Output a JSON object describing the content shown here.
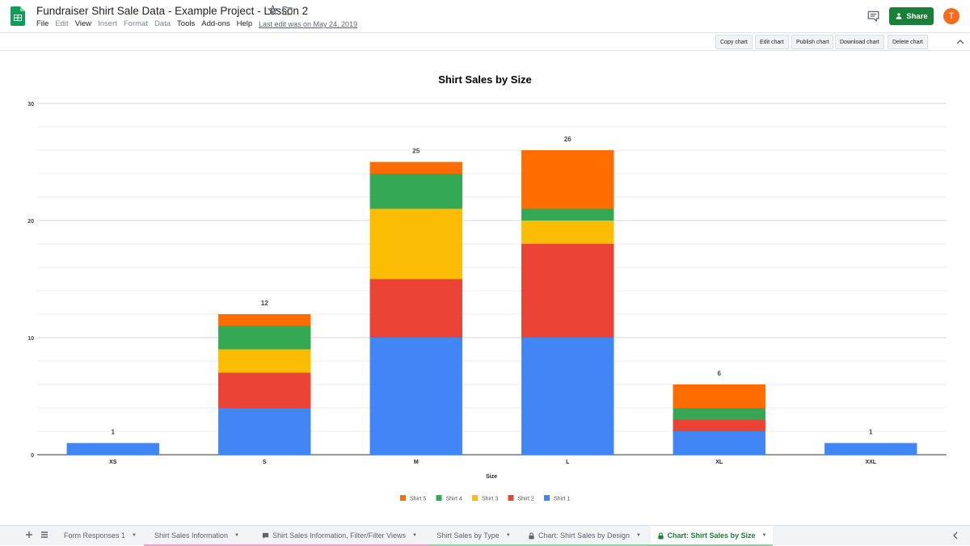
{
  "header": {
    "title": "Fundraiser Shirt Sale Data - Example Project - Lesson 2",
    "menu": [
      {
        "label": "File",
        "enabled": true
      },
      {
        "label": "Edit",
        "enabled": false
      },
      {
        "label": "View",
        "enabled": true
      },
      {
        "label": "Insert",
        "enabled": false
      },
      {
        "label": "Format",
        "enabled": false
      },
      {
        "label": "Data",
        "enabled": false
      },
      {
        "label": "Tools",
        "enabled": true
      },
      {
        "label": "Add-ons",
        "enabled": true
      },
      {
        "label": "Help",
        "enabled": true
      }
    ],
    "last_edit": "Last edit was on May 24, 2019",
    "share_label": "Share",
    "avatar_letter": "T",
    "icons": [
      "sheets-logo-icon",
      "star-icon",
      "move-to-folder-icon",
      "comment-icon",
      "collapse-icon"
    ]
  },
  "toolbar": {
    "buttons": [
      "Copy chart",
      "Edit chart",
      "Publish chart",
      "Download chart",
      "Delete chart"
    ]
  },
  "chart_data": {
    "type": "bar",
    "stacked": true,
    "title": "Shirt Sales by Size",
    "xlabel": "Size",
    "ylabel": "",
    "categories": [
      "XS",
      "S",
      "M",
      "L",
      "XL",
      "XXL"
    ],
    "ylim": [
      0,
      30
    ],
    "yticks": [
      "0",
      "10",
      "20",
      "30"
    ],
    "grid": true,
    "legend_position": "bottom",
    "series": [
      {
        "name": "Shirt 1",
        "color": "#4285f4",
        "values": [
          1,
          4,
          10,
          10,
          2,
          1
        ]
      },
      {
        "name": "Shirt 2",
        "color": "#ea4335",
        "values": [
          0,
          3,
          5,
          8,
          1,
          0
        ]
      },
      {
        "name": "Shirt 3",
        "color": "#fbbc04",
        "values": [
          0,
          2,
          6,
          2,
          0,
          0
        ]
      },
      {
        "name": "Shirt 4",
        "color": "#34a853",
        "values": [
          0,
          2,
          3,
          1,
          1,
          0
        ]
      },
      {
        "name": "Shirt 5",
        "color": "#ff6d01",
        "values": [
          0,
          1,
          1,
          5,
          2,
          0
        ]
      }
    ],
    "totals": [
      "1",
      "12",
      "25",
      "26",
      "6",
      "1"
    ]
  },
  "tabs": [
    {
      "label": "Form Responses 1",
      "icon": "",
      "color": "",
      "active": false
    },
    {
      "label": "Shirt Sales Information",
      "icon": "",
      "color": "#e6a0c4",
      "active": false
    },
    {
      "label": "Shirt Sales Information, Filter/Filter Views",
      "icon": "comment-tab-icon",
      "color": "#e6a0c4",
      "active": false
    },
    {
      "label": "Shirt Sales by Type",
      "icon": "",
      "color": "#8fd19e",
      "active": false
    },
    {
      "label": "Chart: Shirt Sales by Design",
      "icon": "lock-icon",
      "color": "#8fd19e",
      "active": false
    },
    {
      "label": "Chart: Shirt Sales by Size",
      "icon": "lock-icon",
      "color": "#8fd19e",
      "active": true
    }
  ]
}
